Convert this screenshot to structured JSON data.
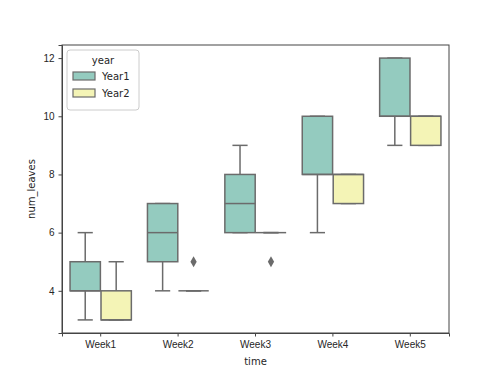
{
  "chart_data": {
    "type": "box",
    "x_label": "time",
    "y_label": "num_leaves",
    "legend_title": "year",
    "legend": "upper left",
    "grid": false,
    "categories": [
      "Week1",
      "Week2",
      "Week3",
      "Week4",
      "Week5"
    ],
    "ylim": [
      2.55,
      12.45
    ],
    "yticks": [
      4,
      6,
      8,
      10,
      12
    ],
    "series": [
      {
        "name": "Year1",
        "color": "#94cbbf",
        "values": [
          {
            "min": 3,
            "q1": 4,
            "median": 4,
            "q3": 5,
            "max": 6
          },
          {
            "min": 4,
            "q1": 5,
            "median": 6,
            "q3": 7,
            "max": 7
          },
          {
            "min": 6,
            "q1": 6,
            "median": 7,
            "q3": 8,
            "max": 9
          },
          {
            "min": 6,
            "q1": 8,
            "median": 8,
            "q3": 10,
            "max": 10
          },
          {
            "min": 9,
            "q1": 10,
            "median": 10,
            "q3": 12,
            "max": 12
          }
        ]
      },
      {
        "name": "Year2",
        "color": "#f4f4b6",
        "values": [
          {
            "min": 3,
            "q1": 3,
            "median": 3,
            "q3": 4,
            "max": 5
          },
          {
            "min": 4,
            "q1": 4,
            "median": 4,
            "q3": 4,
            "max": 4,
            "outliers": [
              5
            ]
          },
          {
            "min": 6,
            "q1": 6,
            "median": 6,
            "q3": 6,
            "max": 6,
            "outliers": [
              5
            ]
          },
          {
            "min": 7,
            "q1": 7,
            "median": 8,
            "q3": 8,
            "max": 8
          },
          {
            "min": 9,
            "q1": 9,
            "median": 10,
            "q3": 10,
            "max": 10
          }
        ]
      }
    ]
  }
}
